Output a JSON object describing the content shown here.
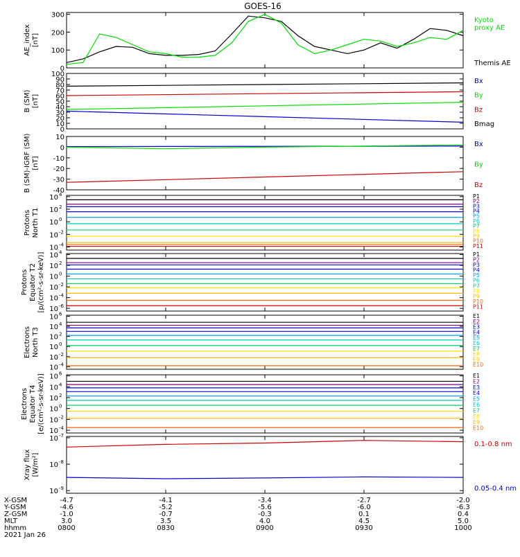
{
  "title": "GOES-16",
  "footer": {
    "rows": [
      "X-GSM",
      "Y-GSM",
      "Z-GSM",
      "MLT",
      "hhmm"
    ],
    "date": "2021 Jan 26",
    "columns": [
      [
        "-4.7",
        "-4.6",
        "-1.0",
        "3.0",
        "0800"
      ],
      [
        "-4.1",
        "-5.2",
        "-0.7",
        "3.5",
        "0830"
      ],
      [
        "-3.4",
        "-5.6",
        "-0.3",
        "4.0",
        "0900"
      ],
      [
        "-2.7",
        "-6.0",
        "0.1",
        "4.5",
        "0930"
      ],
      [
        "-2.0",
        "-6.3",
        "0.4",
        "5.0",
        "1000"
      ]
    ]
  },
  "colors": {
    "black": "#000000",
    "red": "#cc0000",
    "green": "#00dd00",
    "blue": "#0000cc",
    "p_colors": [
      "#000000",
      "#800080",
      "#0000cc",
      "#0000ff",
      "#00a0ff",
      "#00c8c8",
      "#00cc66",
      "#ffdd00",
      "#ffbb00",
      "#ff6600",
      "#cc0000"
    ]
  },
  "chart_data": [
    {
      "type": "line",
      "ylabel": [
        "AE_index",
        "[nT]"
      ],
      "yticks": [
        "0",
        "100",
        "200",
        "300"
      ],
      "ylim": [
        0,
        310
      ],
      "legend": [
        {
          "name": "Kyoto\nproxy AE",
          "color": "green"
        },
        {
          "name": "Themis AE",
          "color": "black"
        }
      ],
      "series": [
        {
          "name": "Themis AE",
          "color": "black",
          "x": [
            800,
            805,
            810,
            815,
            820,
            825,
            830,
            835,
            840,
            845,
            850,
            855,
            900,
            905,
            910,
            915,
            920,
            925,
            930,
            935,
            940,
            945,
            950,
            955,
            1000
          ],
          "values": [
            30,
            50,
            90,
            120,
            115,
            80,
            70,
            70,
            75,
            95,
            190,
            290,
            280,
            260,
            180,
            120,
            100,
            80,
            100,
            140,
            110,
            160,
            220,
            210,
            180
          ]
        },
        {
          "name": "Kyoto proxy AE",
          "color": "green",
          "x": [
            800,
            805,
            810,
            815,
            820,
            825,
            830,
            835,
            840,
            845,
            850,
            855,
            900,
            905,
            910,
            915,
            920,
            925,
            930,
            935,
            940,
            945,
            950,
            955,
            1000
          ],
          "values": [
            20,
            30,
            190,
            170,
            130,
            90,
            80,
            60,
            60,
            70,
            140,
            260,
            300,
            250,
            130,
            80,
            100,
            130,
            160,
            150,
            120,
            140,
            170,
            160,
            210
          ]
        }
      ]
    },
    {
      "type": "line",
      "ylabel": [
        "B (SM)",
        "[nT]"
      ],
      "yticks": [
        "0",
        "10",
        "20",
        "30",
        "40",
        "50",
        "60",
        "70",
        "80",
        "90",
        "100"
      ],
      "ylim": [
        0,
        100
      ],
      "legend": [
        {
          "name": "Bx",
          "color": "blue"
        },
        {
          "name": "By",
          "color": "green"
        },
        {
          "name": "Bz",
          "color": "red"
        },
        {
          "name": "Bmag",
          "color": "black"
        }
      ],
      "series": [
        {
          "name": "Bmag",
          "color": "black",
          "x": [
            800,
            1000
          ],
          "values": [
            77,
            83
          ]
        },
        {
          "name": "Bz",
          "color": "red",
          "x": [
            800,
            1000
          ],
          "values": [
            60,
            67
          ]
        },
        {
          "name": "By",
          "color": "green",
          "x": [
            800,
            1000
          ],
          "values": [
            35,
            48
          ]
        },
        {
          "name": "Bx",
          "color": "blue",
          "x": [
            800,
            1000
          ],
          "values": [
            32,
            12
          ]
        }
      ]
    },
    {
      "type": "line",
      "ylabel": [
        "B (SM)-IGRF (SM)",
        "[nT]"
      ],
      "yticks": [
        "-40",
        "-30",
        "-20",
        "-10",
        "0",
        "10"
      ],
      "ylim": [
        -40,
        10
      ],
      "legend": [
        {
          "name": "Bx",
          "color": "blue"
        },
        {
          "name": "By",
          "color": "green"
        },
        {
          "name": "Bz",
          "color": "red"
        }
      ],
      "series": [
        {
          "name": "Bx",
          "color": "blue",
          "x": [
            800,
            1000
          ],
          "values": [
            0.5,
            1
          ]
        },
        {
          "name": "By",
          "color": "green",
          "x": [
            800,
            830,
            900,
            1000
          ],
          "values": [
            0,
            -1.5,
            0,
            2
          ]
        },
        {
          "name": "Bz",
          "color": "red",
          "x": [
            800,
            1000
          ],
          "values": [
            -33,
            -23
          ]
        }
      ]
    },
    {
      "type": "line",
      "ylabel": [
        "Protons",
        "North T1"
      ],
      "ytick_exps": [
        "-4",
        "-2",
        "0",
        "2",
        "4"
      ],
      "yexp_lim": [
        -4.5,
        4.2
      ],
      "legend_items": [
        "P1",
        "P2",
        "P3",
        "P4",
        "P5",
        "P6",
        "P7",
        "P8",
        "P9",
        "P10",
        "P11"
      ],
      "levels": [
        3.5,
        2.8,
        2.4,
        1.6,
        0.7,
        -0.3,
        -1.3,
        -2.3,
        -3.3,
        -3.6,
        -3.9
      ]
    },
    {
      "type": "line",
      "ylabel": [
        "Protons",
        "Equator T2",
        "[p/(cm²-s-sr-keV)]"
      ],
      "ytick_exps": [
        "-6",
        "-4",
        "-2",
        "0",
        "2",
        "4"
      ],
      "yexp_lim": [
        -6.5,
        4.2
      ],
      "legend_items": [
        "P1",
        "P2",
        "P3",
        "P4",
        "P5",
        "P6",
        "P7",
        "P8",
        "P9",
        "P10",
        "P11"
      ],
      "levels": [
        3.3,
        2.5,
        2.1,
        1.3,
        0.4,
        -0.5,
        -1.4,
        -2.2,
        -3.2,
        -4.5,
        -5.5
      ]
    },
    {
      "type": "line",
      "ylabel": [
        "Electrons",
        "North T3"
      ],
      "ytick_exps": [
        "-4",
        "-2",
        "0",
        "2",
        "4",
        "6"
      ],
      "yexp_lim": [
        -4.5,
        6.2
      ],
      "legend_items": [
        "E1",
        "E2",
        "E3",
        "E4",
        "E5",
        "E6",
        "E7",
        "E8",
        "E9",
        "E10"
      ],
      "levels": [
        4.8,
        4.2,
        3.7,
        3.0,
        2.2,
        1.3,
        0.2,
        -0.9,
        -2.2,
        -3.8
      ]
    },
    {
      "type": "line",
      "ylabel": [
        "Electrons",
        "Equator T4",
        "[e/(cm²-s-sr-keV)]"
      ],
      "ytick_exps": [
        "-4",
        "-2",
        "0",
        "2",
        "4",
        "6"
      ],
      "yexp_lim": [
        -4.5,
        6.2
      ],
      "legend_items": [
        "E1",
        "E2",
        "E3",
        "E4",
        "E5",
        "E6",
        "E7",
        "E8",
        "E9",
        "E10"
      ],
      "levels": [
        5.0,
        4.4,
        3.8,
        3.1,
        2.3,
        1.5,
        0.6,
        -0.5,
        -1.8,
        -3.5
      ]
    },
    {
      "type": "line",
      "ylabel": [
        "Xray flux",
        "[W/m²]"
      ],
      "ytick_exps": [
        "-9",
        "-8",
        "-7"
      ],
      "yexp_lim": [
        -9.1,
        -6.95
      ],
      "legend": [
        {
          "name": "0.1-0.8 nm",
          "color": "red"
        },
        {
          "name": "0.05-0.4 nm",
          "color": "blue"
        }
      ],
      "series": [
        {
          "name": "0.1-0.8 nm",
          "color": "red",
          "x": [
            800,
            830,
            900,
            930,
            1000
          ],
          "exps": [
            -7.35,
            -7.25,
            -7.2,
            -7.1,
            -7.15
          ]
        },
        {
          "name": "0.05-0.4 nm",
          "color": "blue",
          "x": [
            800,
            830,
            900,
            930,
            1000
          ],
          "exps": [
            -8.5,
            -8.55,
            -8.52,
            -8.48,
            -8.5
          ]
        }
      ]
    }
  ]
}
